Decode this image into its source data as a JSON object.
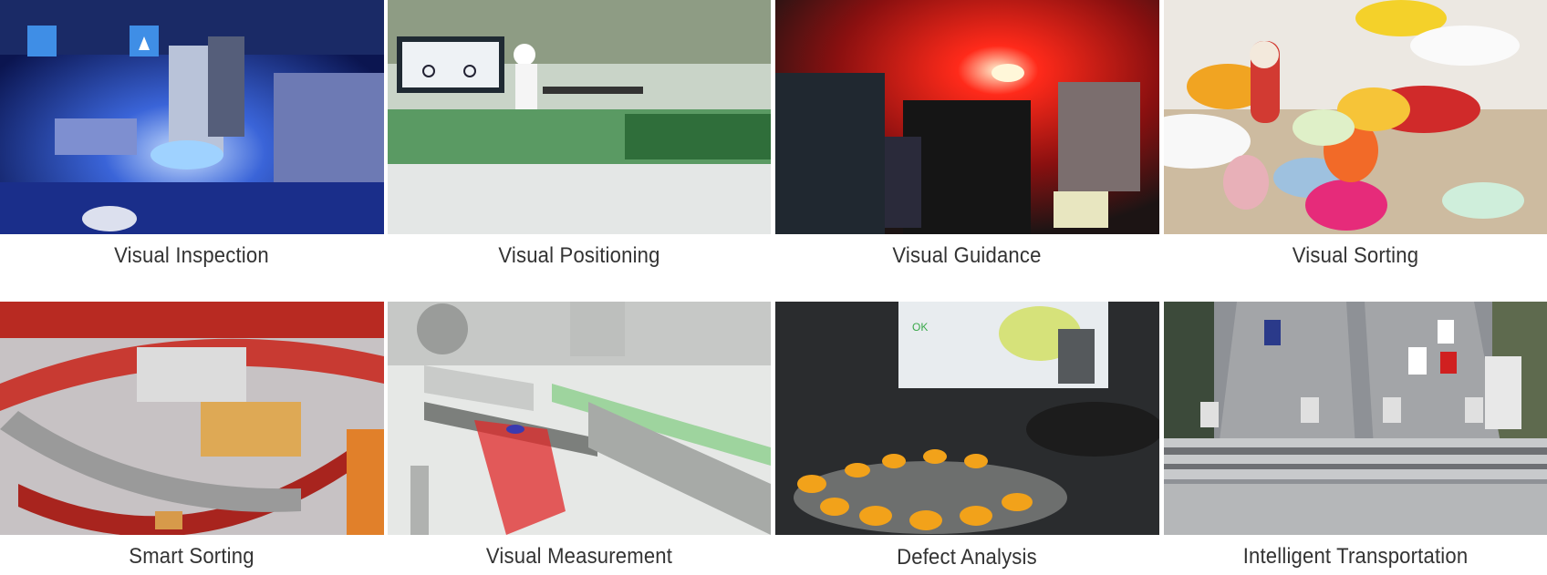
{
  "applications": [
    {
      "label": "Visual Inspection",
      "image": "machine-vision-camera-blue-light"
    },
    {
      "label": "Visual Positioning",
      "image": "pcb-production-line"
    },
    {
      "label": "Visual Guidance",
      "image": "red-lit-robotic-module"
    },
    {
      "label": "Visual Sorting",
      "image": "colorful-pills-and-capsules"
    },
    {
      "label": "Smart Sorting",
      "image": "logistics-sorting-conveyor"
    },
    {
      "label": "Visual Measurement",
      "image": "laser-measurement-conveyor"
    },
    {
      "label": "Defect Analysis",
      "image": "camera-over-yellow-parts"
    },
    {
      "label": "Intelligent Transportation",
      "image": "highway-camera-gantry"
    }
  ]
}
